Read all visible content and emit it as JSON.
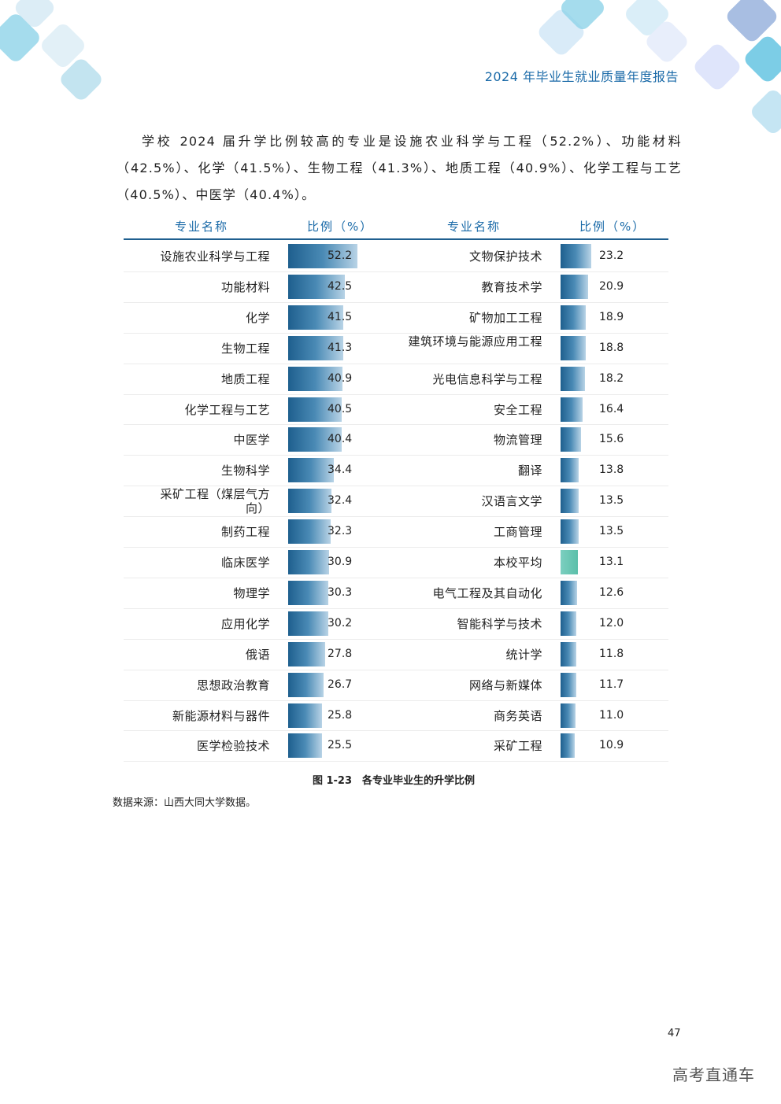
{
  "header": {
    "title": "2024 年毕业生就业质量年度报告"
  },
  "intro": "学校 2024 届升学比例较高的专业是设施农业科学与工程（52.2%）、功能材料（42.5%）、化学（41.5%）、生物工程（41.3%）、地质工程（40.9%）、化学工程与工艺（40.5%）、中医学（40.4%）。",
  "table": {
    "col_name": "专业名称",
    "col_ratio": "比例（%）"
  },
  "chart_data": {
    "type": "bar",
    "max": 52.2,
    "left": [
      {
        "name": "设施农业科学与工程",
        "value": 52.2
      },
      {
        "name": "功能材料",
        "value": 42.5
      },
      {
        "name": "化学",
        "value": 41.5
      },
      {
        "name": "生物工程",
        "value": 41.3
      },
      {
        "name": "地质工程",
        "value": 40.9
      },
      {
        "name": "化学工程与工艺",
        "value": 40.5
      },
      {
        "name": "中医学",
        "value": 40.4
      },
      {
        "name": "生物科学",
        "value": 34.4
      },
      {
        "name": "采矿工程（煤层气方向）",
        "value": 32.4
      },
      {
        "name": "制药工程",
        "value": 32.3
      },
      {
        "name": "临床医学",
        "value": 30.9
      },
      {
        "name": "物理学",
        "value": 30.3
      },
      {
        "name": "应用化学",
        "value": 30.2
      },
      {
        "name": "俄语",
        "value": 27.8
      },
      {
        "name": "思想政治教育",
        "value": 26.7
      },
      {
        "name": "新能源材料与器件",
        "value": 25.8
      },
      {
        "name": "医学检验技术",
        "value": 25.5
      }
    ],
    "right": [
      {
        "name": "文物保护技术",
        "value": 23.2
      },
      {
        "name": "教育技术学",
        "value": 20.9
      },
      {
        "name": "矿物加工工程",
        "value": 18.9
      },
      {
        "name": "建筑环境与能源应用工程",
        "value": 18.8
      },
      {
        "name": "光电信息科学与工程",
        "value": 18.2
      },
      {
        "name": "安全工程",
        "value": 16.4
      },
      {
        "name": "物流管理",
        "value": 15.6
      },
      {
        "name": "翻译",
        "value": 13.8
      },
      {
        "name": "汉语言文学",
        "value": 13.5
      },
      {
        "name": "工商管理",
        "value": 13.5
      },
      {
        "name": "本校平均",
        "value": 13.1,
        "highlight": true
      },
      {
        "name": "电气工程及其自动化",
        "value": 12.6
      },
      {
        "name": "智能科学与技术",
        "value": 12.0
      },
      {
        "name": "统计学",
        "value": 11.8
      },
      {
        "name": "网络与新媒体",
        "value": 11.7
      },
      {
        "name": "商务英语",
        "value": 11.0
      },
      {
        "name": "采矿工程",
        "value": 10.9
      }
    ]
  },
  "caption": "图 1-23　各专业毕业生的升学比例",
  "source": "数据来源：山西大同大学数据。",
  "page_number": "47",
  "watermark": "高考直通车"
}
